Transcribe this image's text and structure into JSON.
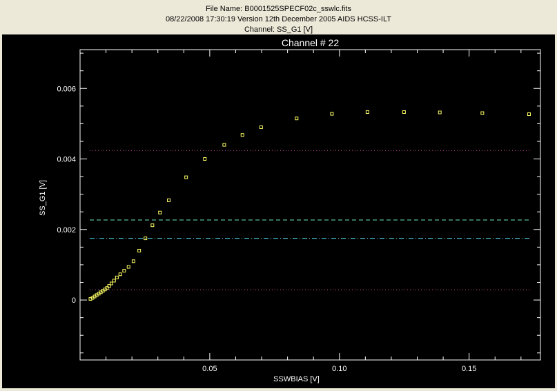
{
  "header": {
    "file_line": "File Name: B0001525SPECF02c_sswlc.fits",
    "version_line": "08/22/2008 17:30:19 Version 12th December 2005 AIDS HCSS-ILT",
    "channel_line": "Channel: SS_G1    [V]"
  },
  "chart_data": {
    "type": "scatter",
    "title": "Channel  #   22",
    "xlabel": "SSWBIAS    [V]",
    "ylabel": "SS_G1      [V]",
    "xlim": [
      0.0,
      0.1775
    ],
    "ylim": [
      -0.0017,
      0.0071
    ],
    "xticks": [
      0.05,
      0.1,
      0.15
    ],
    "xtick_labels": [
      "0.05",
      "0.10",
      "0.15"
    ],
    "yticks": [
      0,
      0.002,
      0.004,
      0.006
    ],
    "ytick_labels": [
      "0",
      "0.002",
      "0.004",
      "0.006"
    ],
    "grid": false,
    "background": "#000000",
    "axis_color": "#ffffff",
    "series": [
      {
        "marker": "square",
        "color": "#ffff66",
        "x": [
          0.004,
          0.0048,
          0.0056,
          0.0064,
          0.0072,
          0.008,
          0.0088,
          0.0096,
          0.0104,
          0.0112,
          0.0121,
          0.0131,
          0.0142,
          0.0155,
          0.017,
          0.0187,
          0.0206,
          0.0228,
          0.0252,
          0.0279,
          0.0308,
          0.0342,
          0.0409,
          0.0481,
          0.0556,
          0.0626,
          0.0698,
          0.0835,
          0.0971,
          0.1108,
          0.1249,
          0.1387,
          0.1551,
          0.1731
        ],
        "y": [
          3e-05,
          6e-05,
          0.0001,
          0.00014,
          0.00018,
          0.00022,
          0.00026,
          0.0003,
          0.00034,
          0.0004,
          0.00047,
          0.00055,
          0.00064,
          0.00073,
          0.00083,
          0.00094,
          0.0011,
          0.0014,
          0.00175,
          0.00212,
          0.00248,
          0.00283,
          0.00348,
          0.004,
          0.0044,
          0.00468,
          0.0049,
          0.00515,
          0.00528,
          0.00533,
          0.00533,
          0.00532,
          0.0053,
          0.00527
        ]
      }
    ],
    "reference_lines": [
      {
        "y": 0.00424,
        "style": "dotted",
        "color": "#b0407a"
      },
      {
        "y": 0.00227,
        "style": "dashed",
        "color": "#55bb99"
      },
      {
        "y": 0.00175,
        "style": "dashdot",
        "color": "#44bbcc"
      },
      {
        "y": 0.00029,
        "style": "dotted",
        "color": "#b0407a"
      }
    ]
  }
}
